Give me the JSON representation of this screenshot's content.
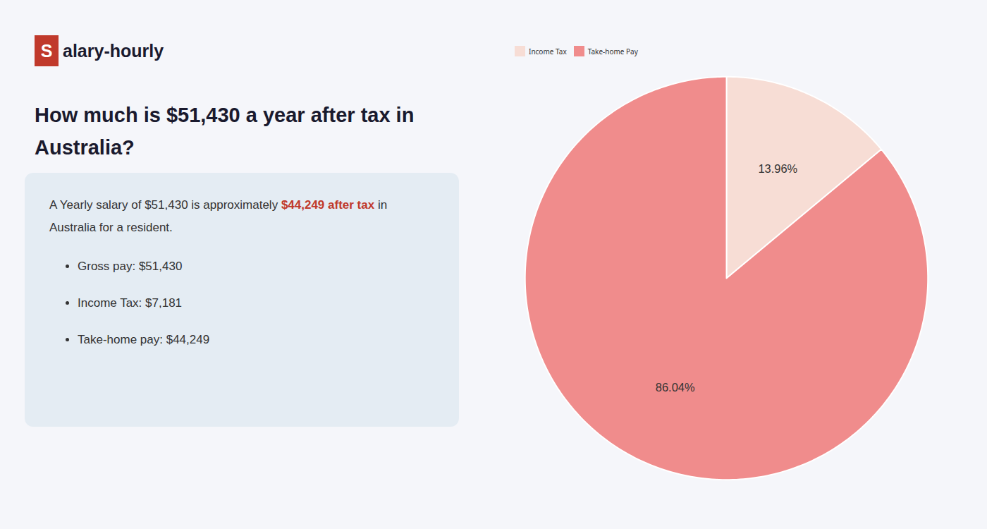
{
  "chart_data": {
    "type": "pie",
    "title": "How much is $51,430 a year after tax in Australia?",
    "annotations": [
      [
        {
          "text": "S",
          "color": "#c0392b"
        },
        {
          "text": "alary-hourly"
        }
      ],
      [
        {
          "text": "A Yearly salary of $51,430 is approximately "
        },
        {
          "text": "$44,249 after tax",
          "color": "#c0392b"
        },
        {
          "text": " in Australia for a resident."
        }
      ],
      [
        {
          "text": "Gross pay: $51,430"
        }
      ],
      [
        {
          "text": "Income Tax: $7,181"
        }
      ],
      [
        {
          "text": "Take-home pay: $44,249"
        }
      ]
    ],
    "categories": [
      "Income Tax",
      "Take-home Pay"
    ],
    "values": [
      13.96,
      86.04
    ],
    "value_labels": [
      "13.96%",
      "86.04%"
    ],
    "colors": [
      "#f7ddd5",
      "#f08c8c"
    ],
    "data_labels": true,
    "legend": "top"
  }
}
